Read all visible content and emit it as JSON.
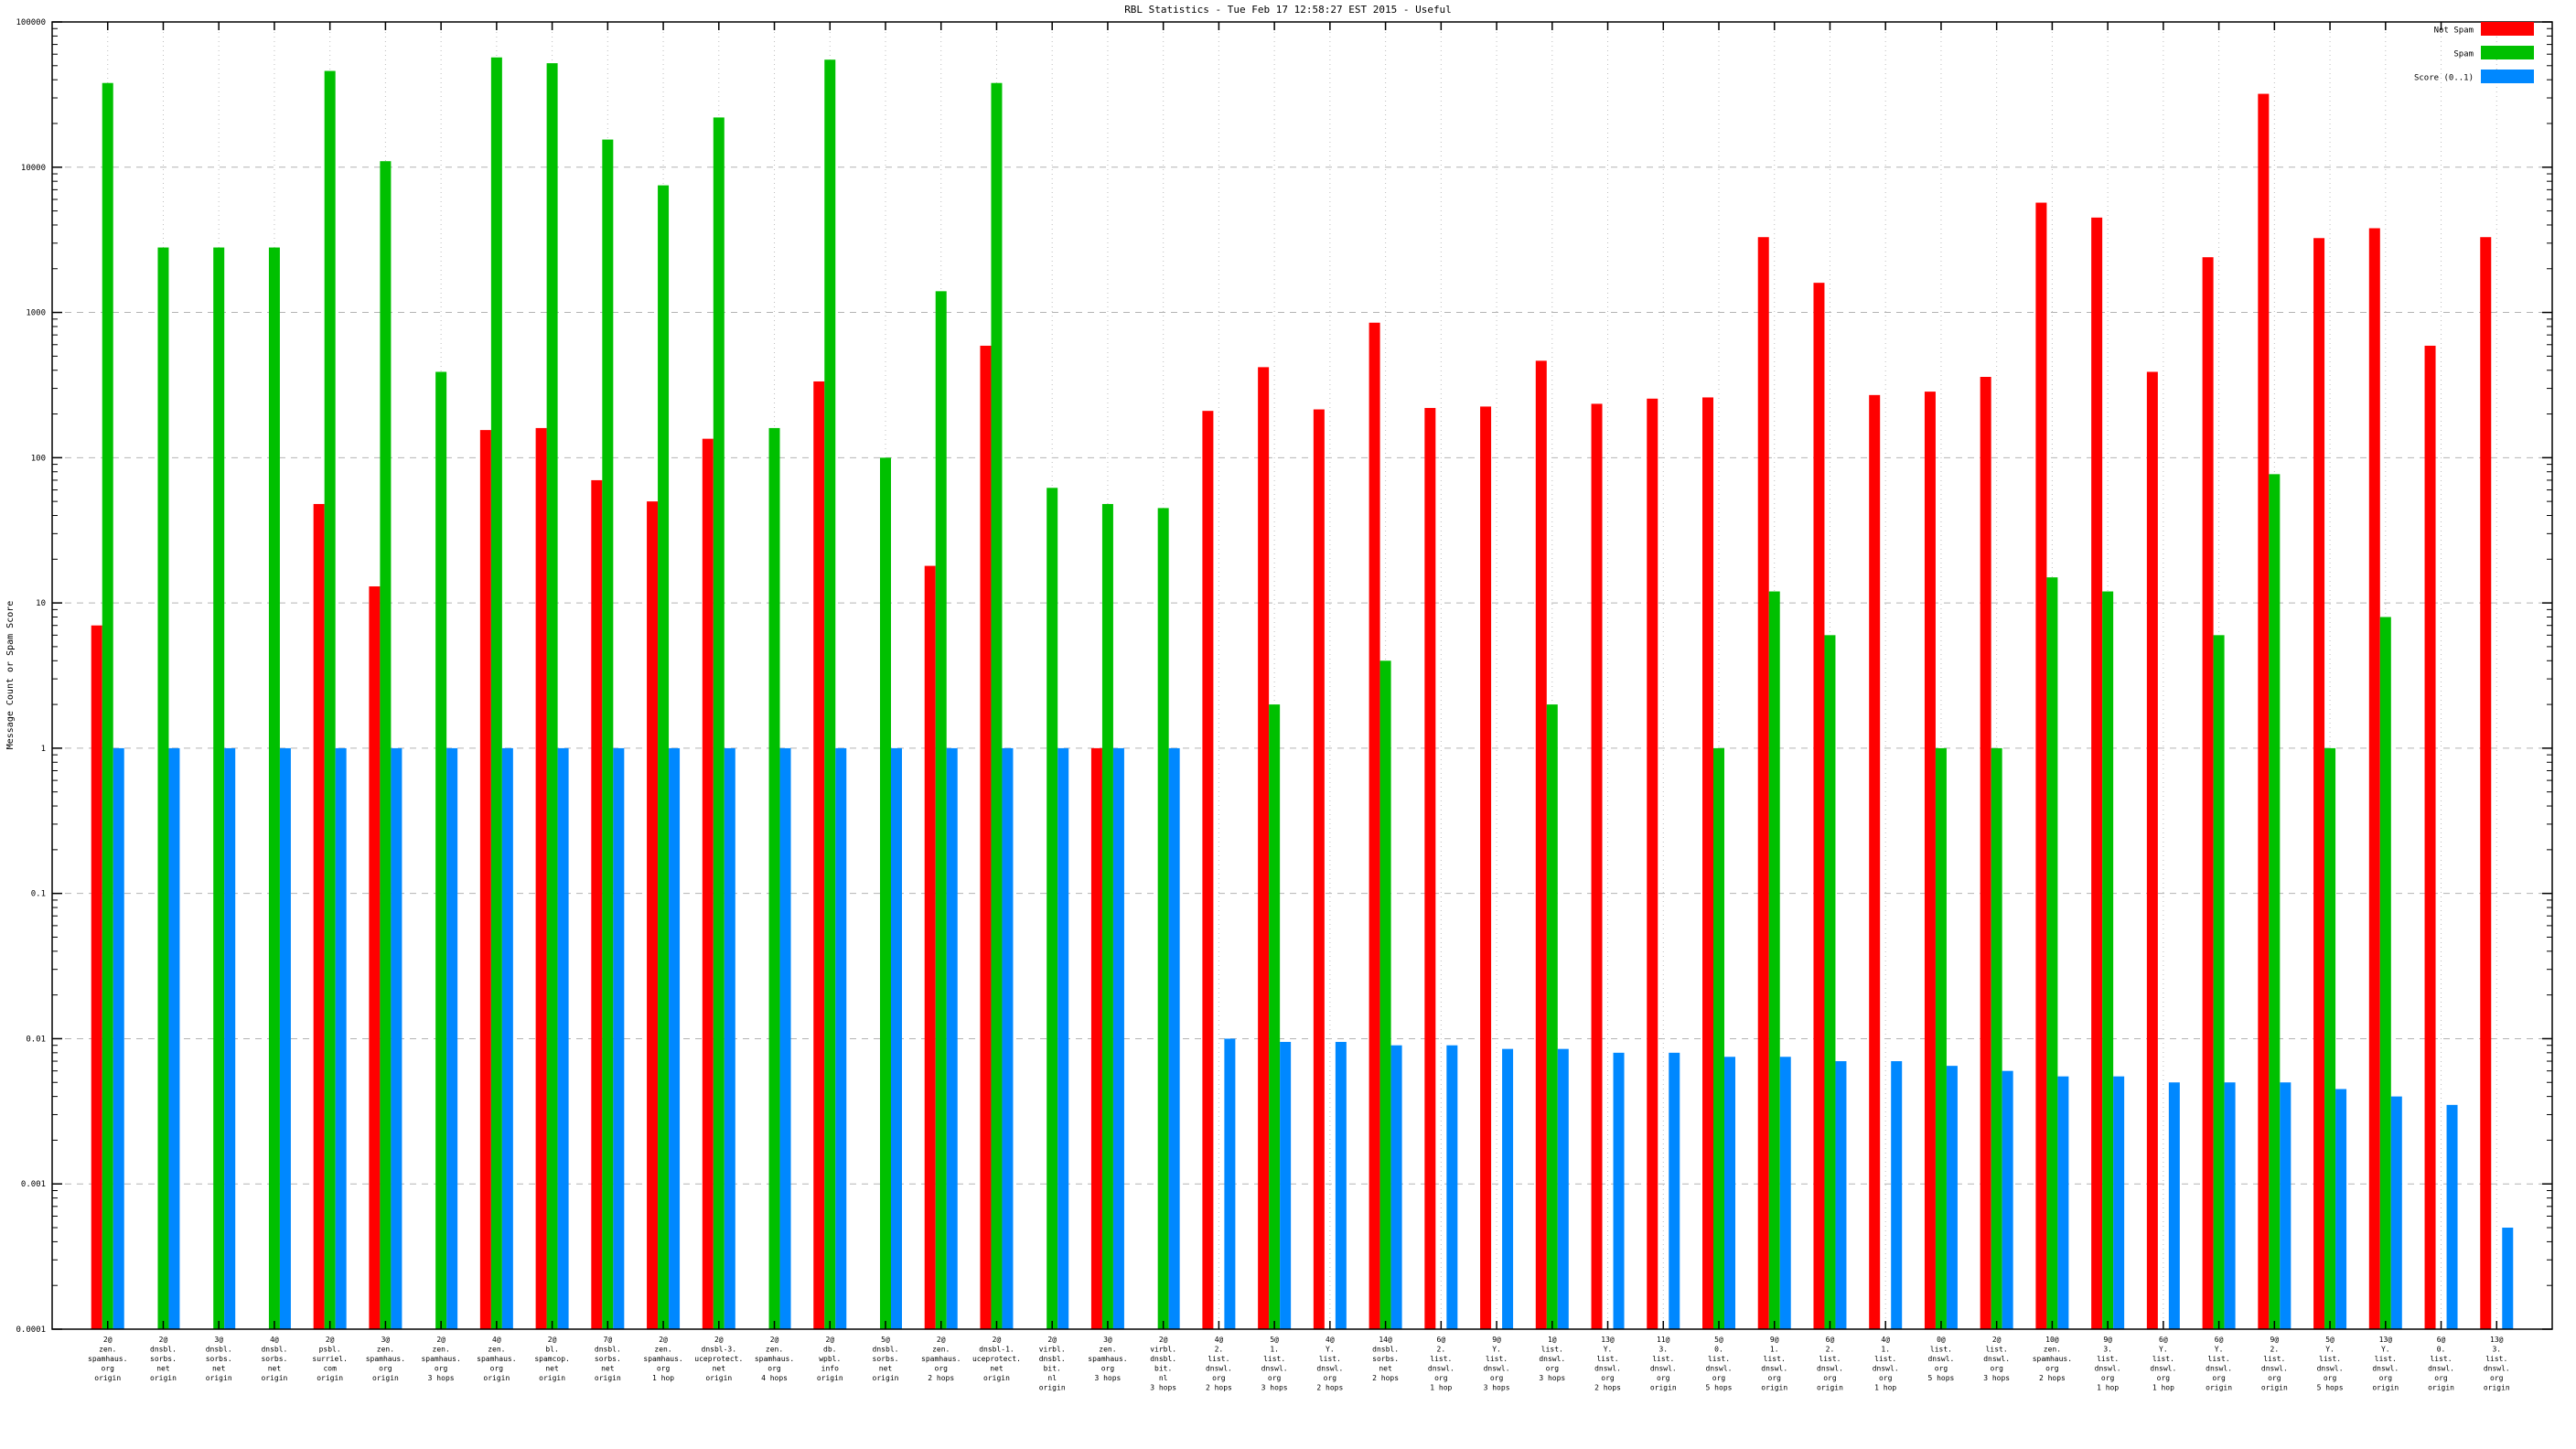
{
  "title": "RBL Statistics - Tue Feb 17 12:58:27 EST 2015 - Useful",
  "ylabel": "Message Count or Spam Score",
  "yticks": [
    "100000",
    "10000",
    "1000",
    "100",
    "10",
    "1",
    "0.1",
    "0.01",
    "0.001",
    "0.0001"
  ],
  "chart_data": {
    "type": "bar",
    "y_scale": "log",
    "ylim": [
      0.0001,
      100000
    ],
    "grid": true,
    "legend_position": "top-right",
    "series": [
      {
        "name": "Not Spam",
        "key": "not_spam",
        "color": "#ff0000"
      },
      {
        "name": "Spam",
        "key": "spam",
        "color": "#00c000"
      },
      {
        "name": "Score (0..1)",
        "key": "score",
        "color": "#0088ff"
      }
    ],
    "groups": [
      {
        "label_lines": [
          "2@",
          "zen.",
          "spamhaus.",
          "org",
          "origin"
        ],
        "not_spam": 7,
        "spam": 38000,
        "score": 1
      },
      {
        "label_lines": [
          "2@",
          "dnsbl.",
          "sorbs.",
          "net",
          "origin"
        ],
        "not_spam": null,
        "spam": 2800,
        "score": 1
      },
      {
        "label_lines": [
          "3@",
          "dnsbl.",
          "sorbs.",
          "net",
          "origin"
        ],
        "not_spam": null,
        "spam": 2800,
        "score": 1
      },
      {
        "label_lines": [
          "4@",
          "dnsbl.",
          "sorbs.",
          "net",
          "origin"
        ],
        "not_spam": null,
        "spam": 2800,
        "score": 1
      },
      {
        "label_lines": [
          "2@",
          "psbl.",
          "surriel.",
          "com",
          "origin"
        ],
        "not_spam": 48,
        "spam": 46000,
        "score": 1
      },
      {
        "label_lines": [
          "3@",
          "zen.",
          "spamhaus.",
          "org",
          "origin"
        ],
        "not_spam": 13,
        "spam": 11000,
        "score": 1
      },
      {
        "label_lines": [
          "2@",
          "zen.",
          "spamhaus.",
          "org",
          "3 hops"
        ],
        "not_spam": null,
        "spam": 390,
        "score": 1
      },
      {
        "label_lines": [
          "4@",
          "zen.",
          "spamhaus.",
          "org",
          "origin"
        ],
        "not_spam": 155,
        "spam": 57000,
        "score": 1
      },
      {
        "label_lines": [
          "2@",
          "bl.",
          "spamcop.",
          "net",
          "origin"
        ],
        "not_spam": 160,
        "spam": 52000,
        "score": 1
      },
      {
        "label_lines": [
          "7@",
          "dnsbl.",
          "sorbs.",
          "net",
          "origin"
        ],
        "not_spam": 70,
        "spam": 15500,
        "score": 1
      },
      {
        "label_lines": [
          "2@",
          "zen.",
          "spamhaus.",
          "org",
          "1 hop"
        ],
        "not_spam": 50,
        "spam": 7500,
        "score": 1
      },
      {
        "label_lines": [
          "2@",
          "dnsbl-3.",
          "uceprotect.",
          "net",
          "origin"
        ],
        "not_spam": 135,
        "spam": 22000,
        "score": 1
      },
      {
        "label_lines": [
          "2@",
          "zen.",
          "spamhaus.",
          "org",
          "4 hops"
        ],
        "not_spam": null,
        "spam": 160,
        "score": 1
      },
      {
        "label_lines": [
          "2@",
          "db.",
          "wpbl.",
          "info",
          "origin"
        ],
        "not_spam": 335,
        "spam": 55000,
        "score": 1
      },
      {
        "label_lines": [
          "5@",
          "dnsbl.",
          "sorbs.",
          "net",
          "origin"
        ],
        "not_spam": null,
        "spam": 100,
        "score": 1
      },
      {
        "label_lines": [
          "2@",
          "zen.",
          "spamhaus.",
          "org",
          "2 hops"
        ],
        "not_spam": 18,
        "spam": 1400,
        "score": 1
      },
      {
        "label_lines": [
          "2@",
          "dnsbl-1.",
          "uceprotect.",
          "net",
          "origin"
        ],
        "not_spam": 590,
        "spam": 38000,
        "score": 1
      },
      {
        "label_lines": [
          "2@",
          "virbl.",
          "dnsbl.",
          "bit.",
          "nl",
          "origin"
        ],
        "not_spam": null,
        "spam": 62,
        "score": 1
      },
      {
        "label_lines": [
          "3@",
          "zen.",
          "spamhaus.",
          "org",
          "3 hops"
        ],
        "not_spam": 1,
        "spam": 48,
        "score": 1
      },
      {
        "label_lines": [
          "2@",
          "virbl.",
          "dnsbl.",
          "bit.",
          "nl",
          "3 hops"
        ],
        "not_spam": null,
        "spam": 45,
        "score": 1
      },
      {
        "label_lines": [
          "4@",
          "2.",
          "list.",
          "dnswl.",
          "org",
          "2 hops"
        ],
        "not_spam": 210,
        "spam": null,
        "score": 0.01
      },
      {
        "label_lines": [
          "5@",
          "1.",
          "list.",
          "dnswl.",
          "org",
          "3 hops"
        ],
        "not_spam": 420,
        "spam": 2,
        "score": 0.0095
      },
      {
        "label_lines": [
          "4@",
          "Y.",
          "list.",
          "dnswl.",
          "org",
          "2 hops"
        ],
        "not_spam": 215,
        "spam": null,
        "score": 0.0095
      },
      {
        "label_lines": [
          "14@",
          "dnsbl.",
          "sorbs.",
          "net",
          "2 hops"
        ],
        "not_spam": 850,
        "spam": 4,
        "score": 0.009
      },
      {
        "label_lines": [
          "6@",
          "2.",
          "list.",
          "dnswl.",
          "org",
          "1 hop"
        ],
        "not_spam": 220,
        "spam": null,
        "score": 0.009
      },
      {
        "label_lines": [
          "9@",
          "Y.",
          "list.",
          "dnswl.",
          "org",
          "3 hops"
        ],
        "not_spam": 225,
        "spam": null,
        "score": 0.0085
      },
      {
        "label_lines": [
          "1@",
          "list.",
          "dnswl.",
          "org",
          "3 hops"
        ],
        "not_spam": 465,
        "spam": 2,
        "score": 0.0085
      },
      {
        "label_lines": [
          "13@",
          "Y.",
          "list.",
          "dnswl.",
          "org",
          "2 hops"
        ],
        "not_spam": 235,
        "spam": null,
        "score": 0.008
      },
      {
        "label_lines": [
          "11@",
          "3.",
          "list.",
          "dnswl.",
          "org",
          "origin"
        ],
        "not_spam": 255,
        "spam": null,
        "score": 0.008
      },
      {
        "label_lines": [
          "5@",
          "0.",
          "list.",
          "dnswl.",
          "org",
          "5 hops"
        ],
        "not_spam": 260,
        "spam": 1,
        "score": 0.0075
      },
      {
        "label_lines": [
          "9@",
          "1.",
          "list.",
          "dnswl.",
          "org",
          "origin"
        ],
        "not_spam": 3300,
        "spam": 12,
        "score": 0.0075
      },
      {
        "label_lines": [
          "6@",
          "2.",
          "list.",
          "dnswl.",
          "org",
          "origin"
        ],
        "not_spam": 1600,
        "spam": 6,
        "score": 0.007
      },
      {
        "label_lines": [
          "4@",
          "1.",
          "list.",
          "dnswl.",
          "org",
          "1 hop"
        ],
        "not_spam": 270,
        "spam": null,
        "score": 0.007
      },
      {
        "label_lines": [
          "0@",
          "list.",
          "dnswl.",
          "org",
          "5 hops"
        ],
        "not_spam": 285,
        "spam": 1,
        "score": 0.0065
      },
      {
        "label_lines": [
          "2@",
          "list.",
          "dnswl.",
          "org",
          "3 hops"
        ],
        "not_spam": 360,
        "spam": 1,
        "score": 0.006
      },
      {
        "label_lines": [
          "10@",
          "zen.",
          "spamhaus.",
          "org",
          "2 hops"
        ],
        "not_spam": 5700,
        "spam": 15,
        "score": 0.0055
      },
      {
        "label_lines": [
          "9@",
          "3.",
          "list.",
          "dnswl.",
          "org",
          "1 hop"
        ],
        "not_spam": 4500,
        "spam": 12,
        "score": 0.0055
      },
      {
        "label_lines": [
          "6@",
          "Y.",
          "list.",
          "dnswl.",
          "org",
          "1 hop"
        ],
        "not_spam": 390,
        "spam": null,
        "score": 0.005
      },
      {
        "label_lines": [
          "6@",
          "Y.",
          "list.",
          "dnswl.",
          "org",
          "origin"
        ],
        "not_spam": 2400,
        "spam": 6,
        "score": 0.005
      },
      {
        "label_lines": [
          "9@",
          "2.",
          "list.",
          "dnswl.",
          "org",
          "origin"
        ],
        "not_spam": 32000,
        "spam": 77,
        "score": 0.005
      },
      {
        "label_lines": [
          "5@",
          "Y.",
          "list.",
          "dnswl.",
          "org",
          "5 hops"
        ],
        "not_spam": 3250,
        "spam": 1,
        "score": 0.0045
      },
      {
        "label_lines": [
          "13@",
          "Y.",
          "list.",
          "dnswl.",
          "org",
          "origin"
        ],
        "not_spam": 3800,
        "spam": 8,
        "score": 0.004
      },
      {
        "label_lines": [
          "6@",
          "0.",
          "list.",
          "dnswl.",
          "org",
          "origin"
        ],
        "not_spam": 590,
        "spam": null,
        "score": 0.0035
      },
      {
        "label_lines": [
          "13@",
          "3.",
          "list.",
          "dnswl.",
          "org",
          "origin"
        ],
        "not_spam": 3300,
        "spam": null,
        "score": 0.0005
      }
    ]
  }
}
